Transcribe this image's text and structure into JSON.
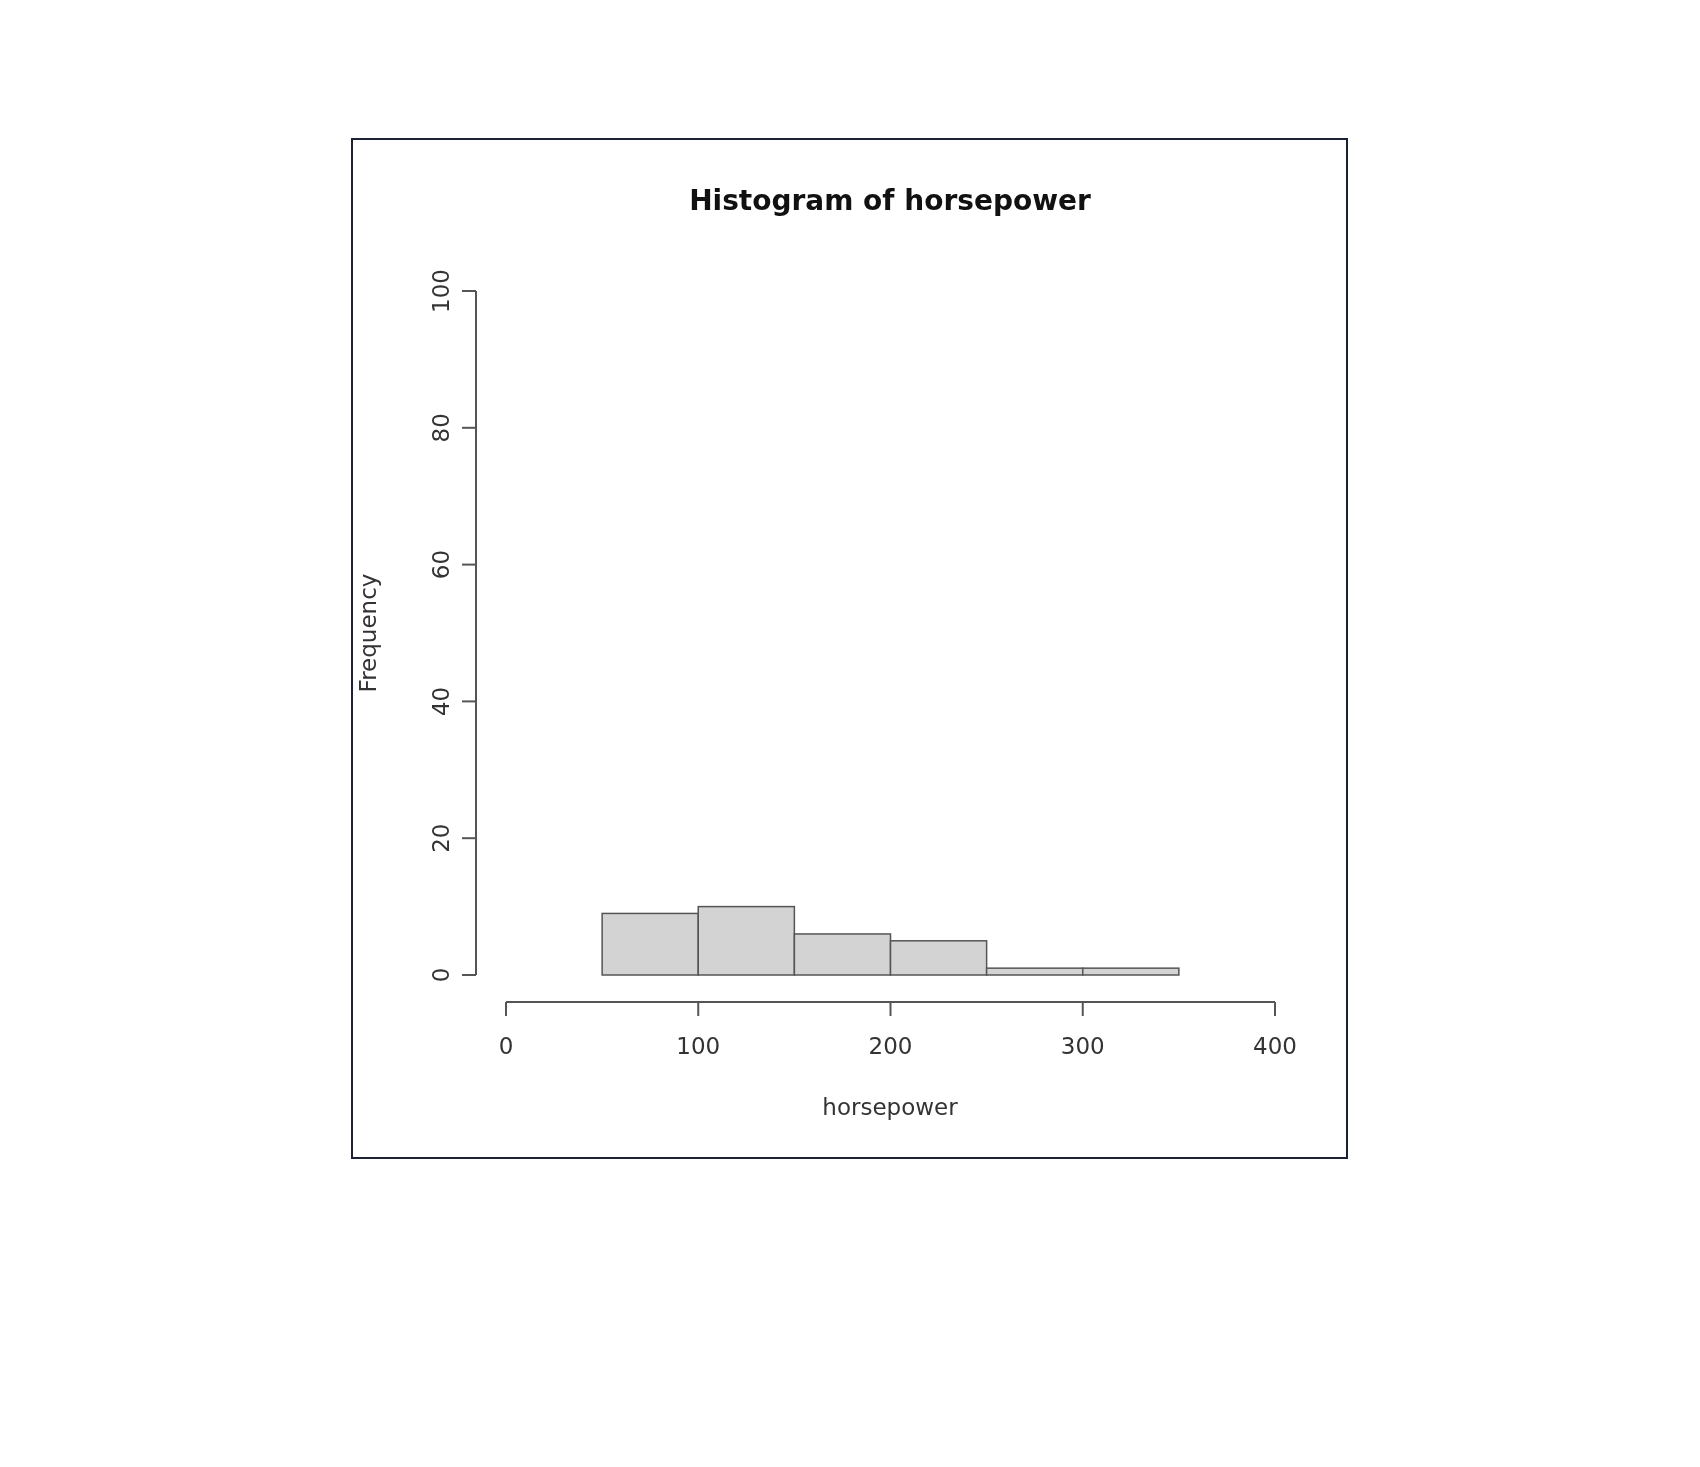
{
  "chart_data": {
    "type": "histogram",
    "title": "Histogram of horsepower",
    "xlabel": "horsepower",
    "ylabel": "Frequency",
    "bins": [
      50,
      100,
      150,
      200,
      250,
      300,
      350
    ],
    "values": [
      9,
      10,
      6,
      5,
      1,
      1
    ],
    "color": "#d3d3d3",
    "xlim": [
      0,
      400
    ],
    "xticks": [
      0,
      100,
      200,
      300,
      400
    ],
    "ylim": [
      0,
      100
    ],
    "yticks": [
      0,
      20,
      40,
      60,
      80,
      100
    ],
    "grid": false
  }
}
